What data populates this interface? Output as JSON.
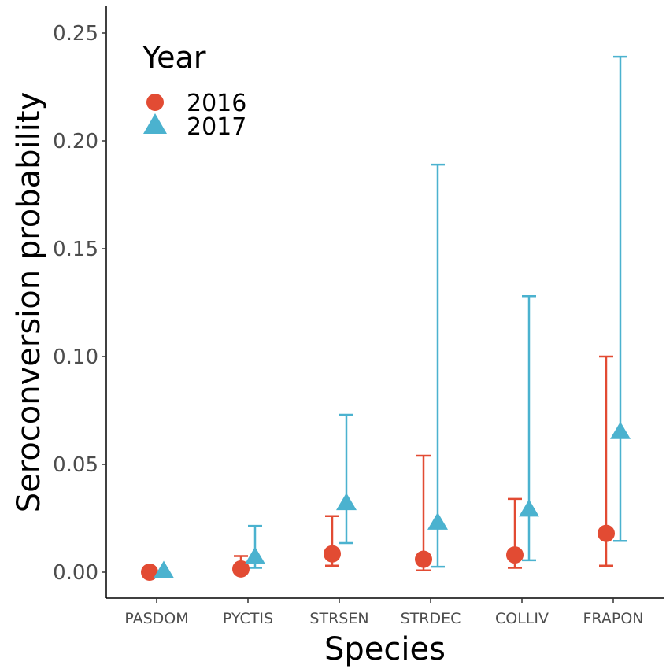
{
  "chart_data": {
    "type": "scatter",
    "xlabel": "Species",
    "ylabel": "Seroconversion probability",
    "ylim": [
      -0.013,
      0.262
    ],
    "yticks": [
      0.0,
      0.05,
      0.1,
      0.15,
      0.2,
      0.25
    ],
    "ytick_labels": [
      "0.00",
      "0.05",
      "0.10",
      "0.15",
      "0.20",
      "0.25"
    ],
    "categories": [
      "PASDOM",
      "PYCTIS",
      "STRSEN",
      "STRDEC",
      "COLLIV",
      "FRAPON"
    ],
    "grid": false,
    "legend": {
      "title": "Year",
      "placement": "top-left",
      "entries": [
        {
          "label": "2016",
          "shape": "circle",
          "color": "#E24B33"
        },
        {
          "label": "2017",
          "shape": "triangle",
          "color": "#4BB2CF"
        }
      ]
    },
    "series": [
      {
        "name": "2016",
        "marker": "circle",
        "color": "#E24B33",
        "values": [
          0.0,
          0.0015,
          0.0085,
          0.006,
          0.008,
          0.018
        ],
        "ci_low": [
          null,
          0.0005,
          0.003,
          0.0008,
          0.002,
          0.003
        ],
        "ci_high": [
          null,
          0.0075,
          0.026,
          0.054,
          0.034,
          0.1
        ]
      },
      {
        "name": "2017",
        "marker": "triangle",
        "color": "#4BB2CF",
        "values": [
          0.0,
          0.0065,
          0.0315,
          0.0225,
          0.0285,
          0.0645
        ],
        "ci_low": [
          null,
          0.002,
          0.0135,
          0.0025,
          0.0055,
          0.0145
        ],
        "ci_high": [
          null,
          0.0215,
          0.073,
          0.189,
          0.128,
          0.239
        ]
      }
    ]
  }
}
